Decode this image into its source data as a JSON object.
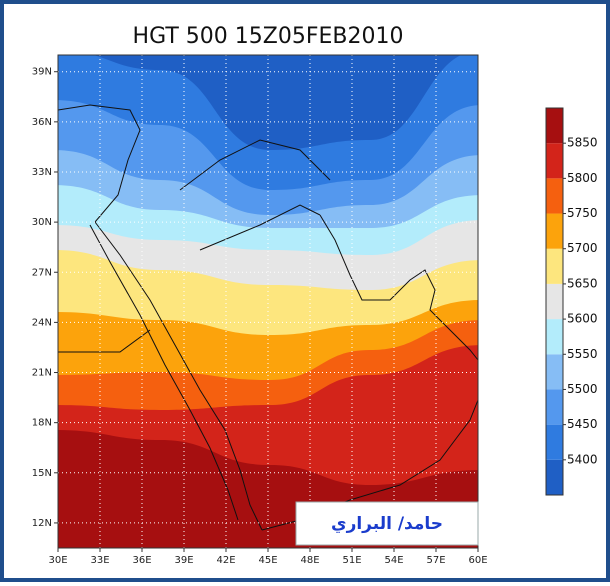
{
  "map": {
    "title": "HGT 500 15Z05FEB2010",
    "xlim": [
      30,
      60
    ],
    "ylim": [
      10.5,
      40
    ],
    "xticks": [
      {
        "value": 30,
        "label": "30E"
      },
      {
        "value": 33,
        "label": "33E"
      },
      {
        "value": 36,
        "label": "36E"
      },
      {
        "value": 39,
        "label": "39E"
      },
      {
        "value": 42,
        "label": "42E"
      },
      {
        "value": 45,
        "label": "45E"
      },
      {
        "value": 48,
        "label": "48E"
      },
      {
        "value": 51,
        "label": "51E"
      },
      {
        "value": 54,
        "label": "54E"
      },
      {
        "value": 57,
        "label": "57E"
      },
      {
        "value": 60,
        "label": "60E"
      }
    ],
    "yticks": [
      {
        "value": 39,
        "label": "39N"
      },
      {
        "value": 36,
        "label": "36N"
      },
      {
        "value": 33,
        "label": "33N"
      },
      {
        "value": 30,
        "label": "30N"
      },
      {
        "value": 27,
        "label": "27N"
      },
      {
        "value": 24,
        "label": "24N"
      },
      {
        "value": 21,
        "label": "21N"
      },
      {
        "value": 18,
        "label": "18N"
      },
      {
        "value": 15,
        "label": "15N"
      },
      {
        "value": 12,
        "label": "12N"
      }
    ],
    "grid": true,
    "colorbar": {
      "levels": [
        5400,
        5450,
        5500,
        5550,
        5600,
        5650,
        5700,
        5750,
        5800,
        5850
      ],
      "colors": [
        "#1f5fc5",
        "#2f7be0",
        "#5498ee",
        "#86bdf5",
        "#b3ecfb",
        "#e6e6e6",
        "#fde67e",
        "#fca30c",
        "#f5600f",
        "#d3241a",
        "#a60f10"
      ]
    },
    "credit": "حامد/ البراري"
  }
}
